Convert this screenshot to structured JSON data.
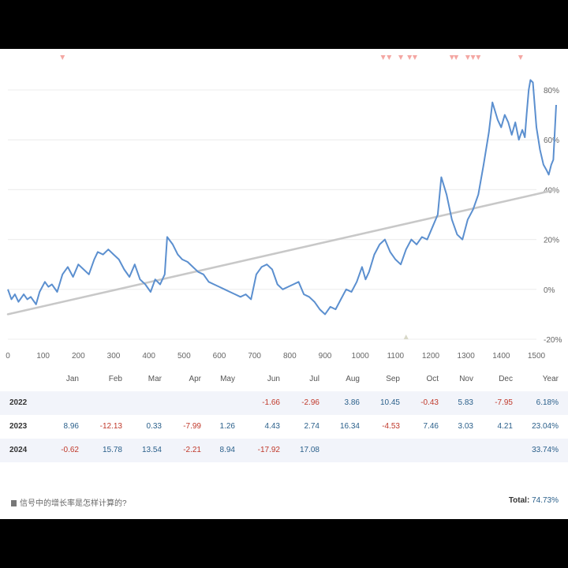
{
  "chart_data": {
    "type": "line",
    "x_ticks": [
      0,
      100,
      200,
      300,
      400,
      500,
      600,
      700,
      800,
      900,
      1000,
      1100,
      1200,
      1300,
      1400,
      1500
    ],
    "y_ticks": [
      "80%",
      "60%",
      "40%",
      "20%",
      "0%",
      "-20%"
    ],
    "xlim": [
      0,
      1500
    ],
    "ylim": [
      -20,
      85
    ],
    "series": [
      {
        "values": [
          [
            0,
            0
          ],
          [
            10,
            -4
          ],
          [
            20,
            -2
          ],
          [
            30,
            -5
          ],
          [
            45,
            -2
          ],
          [
            55,
            -4
          ],
          [
            65,
            -3
          ],
          [
            80,
            -6
          ],
          [
            90,
            -1
          ],
          [
            105,
            3
          ],
          [
            115,
            1
          ],
          [
            125,
            2
          ],
          [
            140,
            -1
          ],
          [
            155,
            6
          ],
          [
            170,
            9
          ],
          [
            185,
            5
          ],
          [
            200,
            10
          ],
          [
            215,
            8
          ],
          [
            230,
            6
          ],
          [
            245,
            12
          ],
          [
            255,
            15
          ],
          [
            270,
            14
          ],
          [
            285,
            16
          ],
          [
            300,
            14
          ],
          [
            315,
            12
          ],
          [
            330,
            8
          ],
          [
            345,
            5
          ],
          [
            360,
            10
          ],
          [
            375,
            4
          ],
          [
            390,
            2
          ],
          [
            405,
            -1
          ],
          [
            418,
            4
          ],
          [
            432,
            2
          ],
          [
            445,
            6
          ],
          [
            452,
            21
          ],
          [
            468,
            18
          ],
          [
            482,
            14
          ],
          [
            495,
            12
          ],
          [
            510,
            11
          ],
          [
            525,
            9
          ],
          [
            540,
            7
          ],
          [
            555,
            6
          ],
          [
            570,
            3
          ],
          [
            585,
            2
          ],
          [
            600,
            1
          ],
          [
            615,
            0
          ],
          [
            630,
            -1
          ],
          [
            645,
            -2
          ],
          [
            660,
            -3
          ],
          [
            675,
            -2
          ],
          [
            690,
            -4
          ],
          [
            705,
            6
          ],
          [
            720,
            9
          ],
          [
            735,
            10
          ],
          [
            750,
            8
          ],
          [
            765,
            2
          ],
          [
            780,
            0
          ],
          [
            795,
            1
          ],
          [
            810,
            2
          ],
          [
            825,
            3
          ],
          [
            840,
            -2
          ],
          [
            855,
            -3
          ],
          [
            870,
            -5
          ],
          [
            885,
            -8
          ],
          [
            900,
            -10
          ],
          [
            915,
            -7
          ],
          [
            930,
            -8
          ],
          [
            945,
            -4
          ],
          [
            960,
            0
          ],
          [
            975,
            -1
          ],
          [
            990,
            3
          ],
          [
            1005,
            9
          ],
          [
            1015,
            4
          ],
          [
            1025,
            7
          ],
          [
            1040,
            14
          ],
          [
            1055,
            18
          ],
          [
            1070,
            20
          ],
          [
            1085,
            15
          ],
          [
            1100,
            12
          ],
          [
            1115,
            10
          ],
          [
            1130,
            16
          ],
          [
            1145,
            20
          ],
          [
            1160,
            18
          ],
          [
            1175,
            21
          ],
          [
            1190,
            20
          ],
          [
            1205,
            25
          ],
          [
            1220,
            30
          ],
          [
            1230,
            45
          ],
          [
            1245,
            38
          ],
          [
            1260,
            28
          ],
          [
            1275,
            22
          ],
          [
            1290,
            20
          ],
          [
            1305,
            28
          ],
          [
            1320,
            32
          ],
          [
            1335,
            38
          ],
          [
            1350,
            50
          ],
          [
            1365,
            63
          ],
          [
            1375,
            75
          ],
          [
            1390,
            68
          ],
          [
            1400,
            65
          ],
          [
            1410,
            70
          ],
          [
            1420,
            67
          ],
          [
            1430,
            62
          ],
          [
            1440,
            67
          ],
          [
            1450,
            60
          ],
          [
            1460,
            64
          ],
          [
            1467,
            61
          ],
          [
            1472,
            70
          ],
          [
            1478,
            80
          ],
          [
            1483,
            84
          ],
          [
            1490,
            83
          ],
          [
            1500,
            65
          ],
          [
            1510,
            56
          ],
          [
            1520,
            50
          ],
          [
            1528,
            48
          ],
          [
            1535,
            46
          ],
          [
            1542,
            50
          ],
          [
            1548,
            52
          ],
          [
            1556,
            74
          ]
        ]
      },
      {
        "values": [
          [
            0,
            -10
          ],
          [
            1556,
            40
          ]
        ]
      }
    ],
    "markers_top": [
      155,
      1065,
      1082,
      1115,
      1140,
      1155,
      1260,
      1272,
      1305,
      1320,
      1335,
      1455
    ]
  },
  "table": {
    "headers": [
      "Jan",
      "Feb",
      "Mar",
      "Apr",
      "May",
      "Jun",
      "Jul",
      "Aug",
      "Sep",
      "Oct",
      "Nov",
      "Dec",
      "Year"
    ],
    "rows": [
      {
        "year": "2022",
        "cells": [
          "",
          "",
          "",
          "",
          "",
          "-1.66",
          "-2.96",
          "3.86",
          "10.45",
          "-0.43",
          "5.83",
          "-7.95"
        ],
        "total": "6.18%"
      },
      {
        "year": "2023",
        "cells": [
          "8.96",
          "-12.13",
          "0.33",
          "-7.99",
          "1.26",
          "4.43",
          "2.74",
          "16.34",
          "-4.53",
          "7.46",
          "3.03",
          "4.21"
        ],
        "total": "23.04%"
      },
      {
        "year": "2024",
        "cells": [
          "-0.62",
          "15.78",
          "13.54",
          "-2.21",
          "8.94",
          "-17.92",
          "17.08",
          "",
          "",
          "",
          "",
          ""
        ],
        "total": "33.74%"
      }
    ]
  },
  "footer": {
    "question": "信号中的增长率是怎样计算的?",
    "total_label": "Total:",
    "total_value": "74.73%"
  },
  "colors": {
    "line": "#5b8fcf",
    "trend": "#c8c8c8",
    "marker": "#f4a7a3",
    "positive": "#2a5f8a",
    "negative": "#c0392b"
  }
}
